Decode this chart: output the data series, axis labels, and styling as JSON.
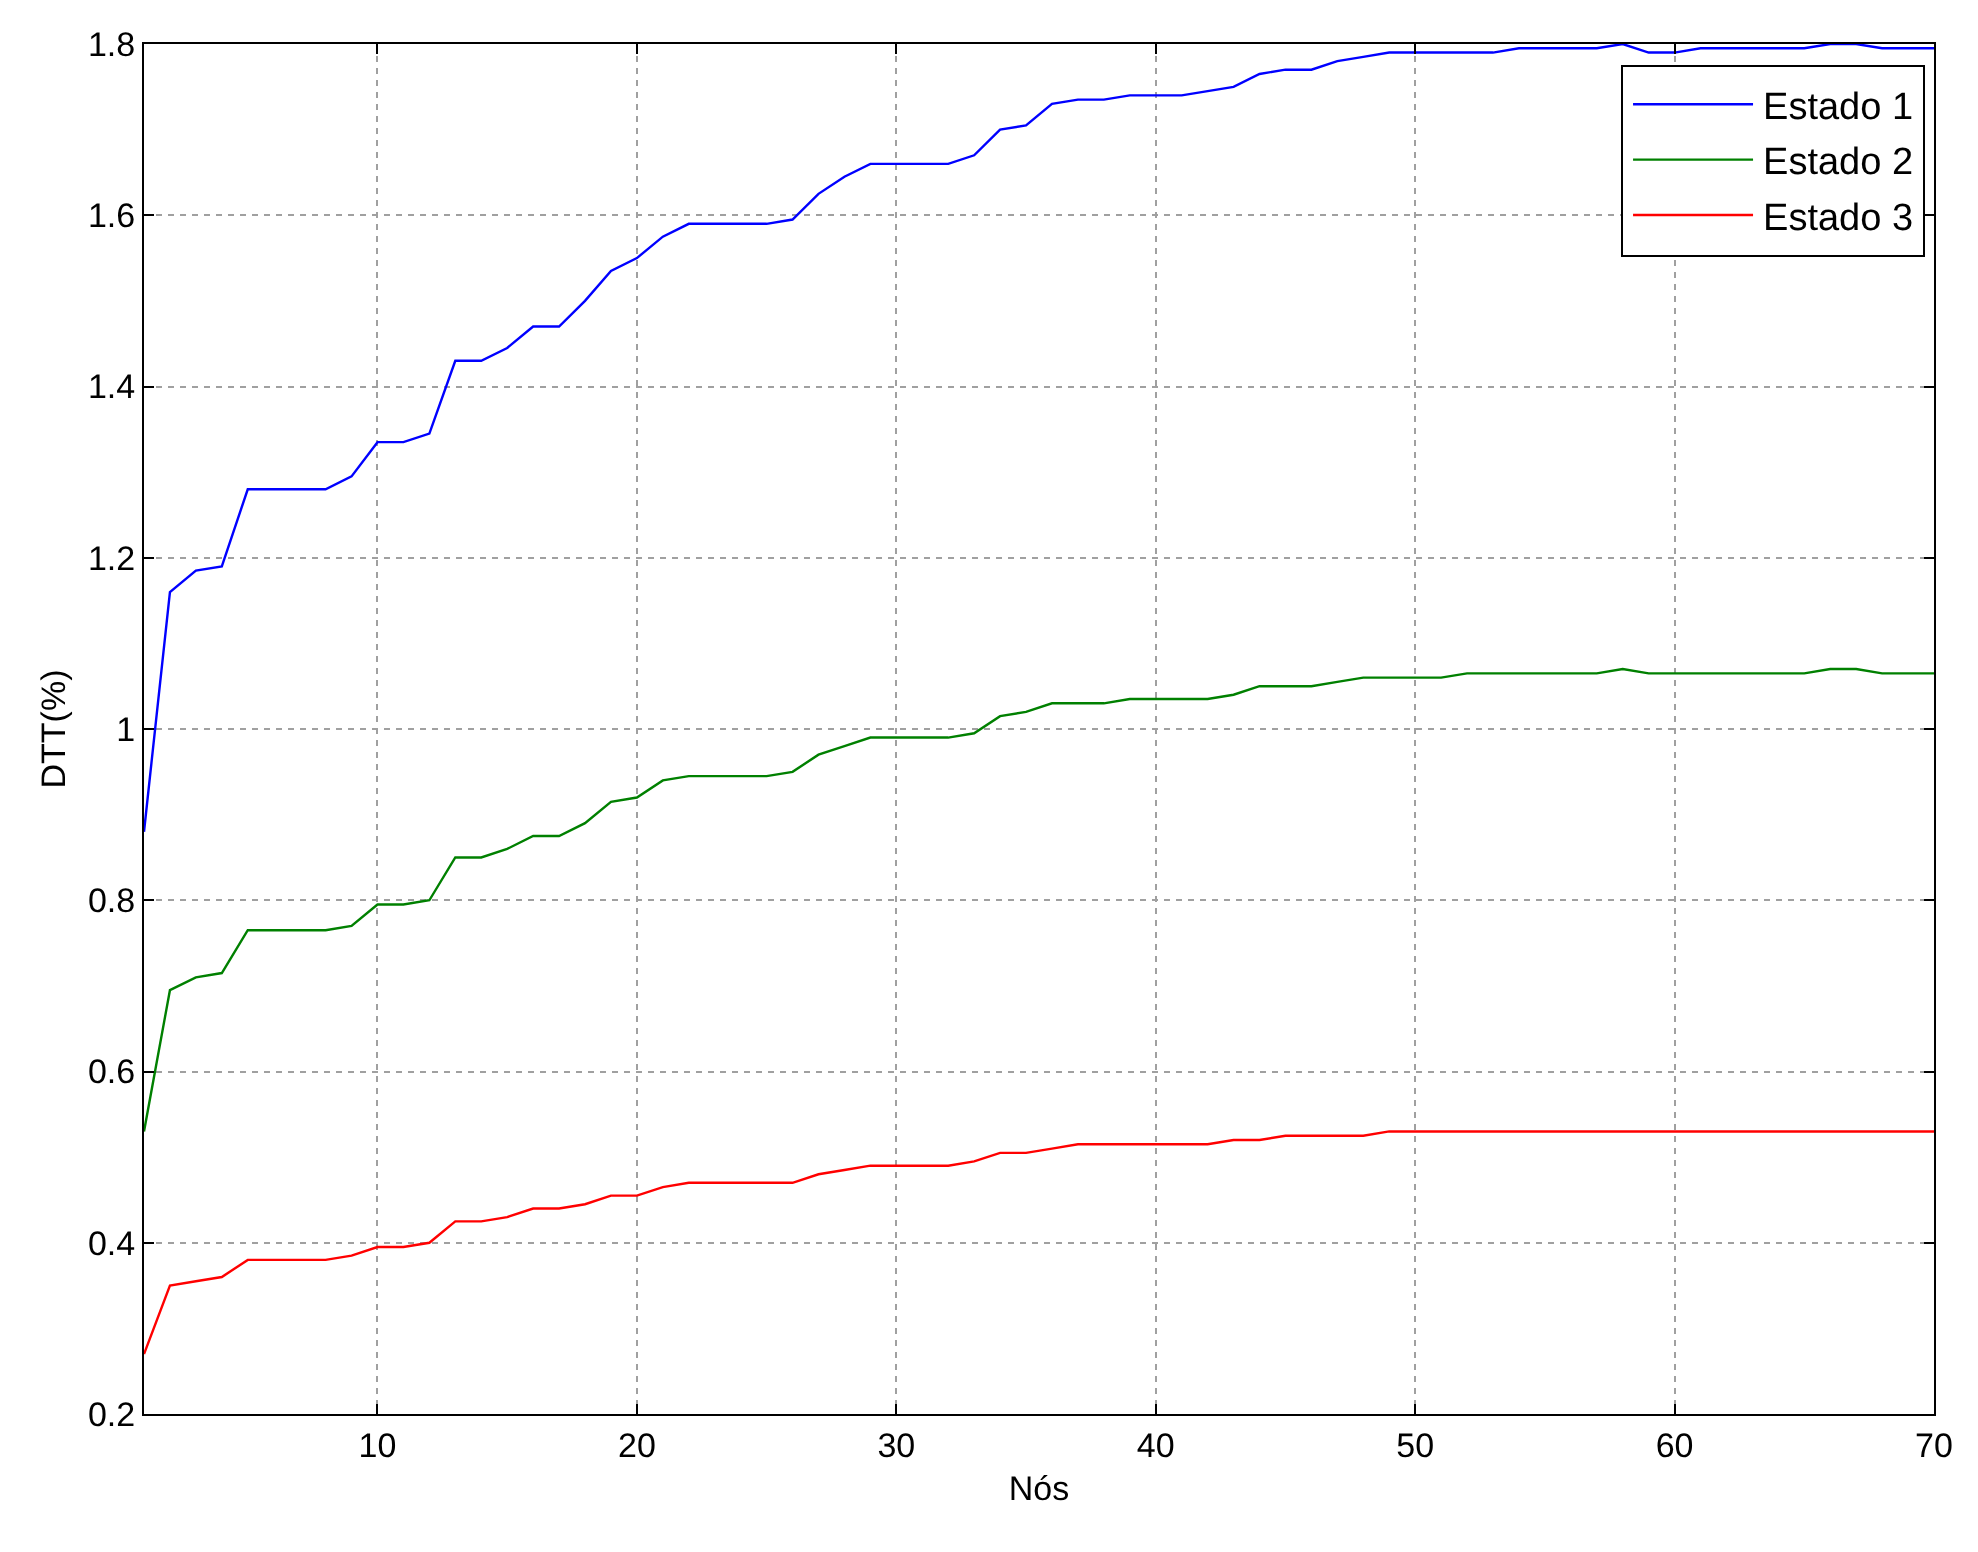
{
  "chart_data": {
    "type": "line",
    "xlabel": "Nós",
    "ylabel": "DTT(%)",
    "x": [
      1,
      2,
      3,
      4,
      5,
      6,
      7,
      8,
      9,
      10,
      11,
      12,
      13,
      14,
      15,
      16,
      17,
      18,
      19,
      20,
      21,
      22,
      23,
      24,
      25,
      26,
      27,
      28,
      29,
      30,
      31,
      32,
      33,
      34,
      35,
      36,
      37,
      38,
      39,
      40,
      41,
      42,
      43,
      44,
      45,
      46,
      47,
      48,
      49,
      50,
      51,
      52,
      53,
      54,
      55,
      56,
      57,
      58,
      59,
      60,
      61,
      62,
      63,
      64,
      65,
      66,
      67,
      68,
      69,
      70
    ],
    "series": [
      {
        "name": "Estado 1",
        "color": "#0000ff",
        "values": [
          0.88,
          1.16,
          1.185,
          1.19,
          1.28,
          1.28,
          1.28,
          1.28,
          1.295,
          1.335,
          1.335,
          1.345,
          1.43,
          1.43,
          1.445,
          1.47,
          1.47,
          1.5,
          1.535,
          1.55,
          1.575,
          1.59,
          1.59,
          1.59,
          1.59,
          1.595,
          1.625,
          1.645,
          1.66,
          1.66,
          1.66,
          1.66,
          1.67,
          1.7,
          1.705,
          1.73,
          1.735,
          1.735,
          1.74,
          1.74,
          1.74,
          1.745,
          1.75,
          1.765,
          1.77,
          1.77,
          1.78,
          1.785,
          1.79,
          1.79,
          1.79,
          1.79,
          1.79,
          1.795,
          1.795,
          1.795,
          1.795,
          1.8,
          1.79,
          1.79,
          1.795,
          1.795,
          1.795,
          1.795,
          1.795,
          1.8,
          1.8,
          1.795,
          1.795,
          1.795
        ]
      },
      {
        "name": "Estado 2",
        "color": "#008000",
        "values": [
          0.53,
          0.695,
          0.71,
          0.715,
          0.765,
          0.765,
          0.765,
          0.765,
          0.77,
          0.795,
          0.795,
          0.8,
          0.85,
          0.85,
          0.86,
          0.875,
          0.875,
          0.89,
          0.915,
          0.92,
          0.94,
          0.945,
          0.945,
          0.945,
          0.945,
          0.95,
          0.97,
          0.98,
          0.99,
          0.99,
          0.99,
          0.99,
          0.995,
          1.015,
          1.02,
          1.03,
          1.03,
          1.03,
          1.035,
          1.035,
          1.035,
          1.035,
          1.04,
          1.05,
          1.05,
          1.05,
          1.055,
          1.06,
          1.06,
          1.06,
          1.06,
          1.065,
          1.065,
          1.065,
          1.065,
          1.065,
          1.065,
          1.07,
          1.065,
          1.065,
          1.065,
          1.065,
          1.065,
          1.065,
          1.065,
          1.07,
          1.07,
          1.065,
          1.065,
          1.065
        ]
      },
      {
        "name": "Estado 3",
        "color": "#ff0000",
        "values": [
          0.27,
          0.35,
          0.355,
          0.36,
          0.38,
          0.38,
          0.38,
          0.38,
          0.385,
          0.395,
          0.395,
          0.4,
          0.425,
          0.425,
          0.43,
          0.44,
          0.44,
          0.445,
          0.455,
          0.455,
          0.465,
          0.47,
          0.47,
          0.47,
          0.47,
          0.47,
          0.48,
          0.485,
          0.49,
          0.49,
          0.49,
          0.49,
          0.495,
          0.505,
          0.505,
          0.51,
          0.515,
          0.515,
          0.515,
          0.515,
          0.515,
          0.515,
          0.52,
          0.52,
          0.525,
          0.525,
          0.525,
          0.525,
          0.53,
          0.53,
          0.53,
          0.53,
          0.53,
          0.53,
          0.53,
          0.53,
          0.53,
          0.53,
          0.53,
          0.53,
          0.53,
          0.53,
          0.53,
          0.53,
          0.53,
          0.53,
          0.53,
          0.53,
          0.53,
          0.53
        ]
      }
    ],
    "xlim": [
      1,
      70
    ],
    "xticks": [
      10,
      20,
      30,
      40,
      50,
      60,
      70
    ],
    "ylim": [
      0.2,
      1.8
    ],
    "yticks": [
      0.2,
      0.4,
      0.6,
      0.8,
      1,
      1.2,
      1.4,
      1.6,
      1.8
    ],
    "grid": true,
    "legend": "top right",
    "marker": "none",
    "line_style": "solid"
  }
}
